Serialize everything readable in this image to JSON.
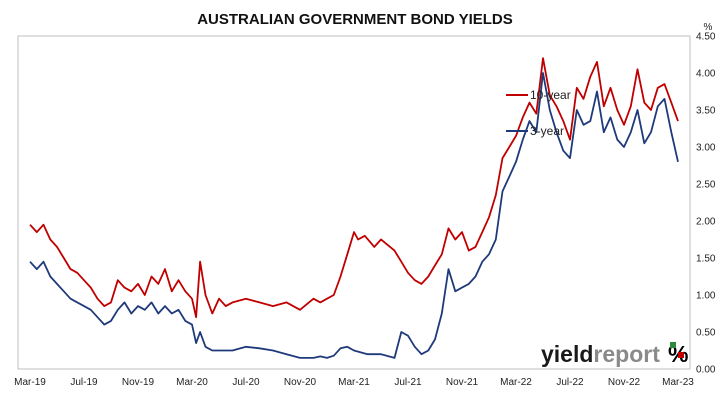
{
  "chart_data": {
    "type": "line",
    "title": "AUSTRALIAN GOVERNMENT BOND YIELDS",
    "xlabel": "",
    "ylabel": "",
    "y_unit": "%",
    "ylim": [
      0,
      4.5
    ],
    "y_ticks": [
      "0.00",
      "0.50",
      "1.00",
      "1.50",
      "2.00",
      "2.50",
      "3.00",
      "3.50",
      "4.00",
      "4.50"
    ],
    "x_tick_labels": [
      "Mar-19",
      "Jul-19",
      "Nov-19",
      "Mar-20",
      "Jul-20",
      "Nov-20",
      "Mar-21",
      "Jul-21",
      "Nov-21",
      "Mar-22",
      "Jul-22",
      "Nov-22",
      "Mar-23"
    ],
    "x_months_range": [
      0,
      48
    ],
    "grid": false,
    "legend_position": "top-right",
    "series": [
      {
        "name": "10-year",
        "color": "#c00000",
        "x": [
          0,
          0.5,
          1,
          1.5,
          2,
          2.5,
          3,
          3.5,
          4,
          4.5,
          5,
          5.5,
          6,
          6.5,
          7,
          7.5,
          8,
          8.5,
          9,
          9.5,
          10,
          10.5,
          11,
          11.5,
          12,
          12.3,
          12.6,
          13,
          13.5,
          14,
          14.5,
          15,
          16,
          17,
          18,
          19,
          20,
          21,
          21.5,
          22,
          22.5,
          23,
          23.5,
          24,
          24.3,
          24.8,
          25.5,
          26,
          27,
          27.5,
          28,
          28.5,
          29,
          29.5,
          30,
          30.5,
          31,
          31.5,
          32,
          32.5,
          33,
          33.5,
          34,
          34.5,
          35,
          35.5,
          36,
          36.5,
          37,
          37.5,
          38,
          38.5,
          39,
          39.5,
          40,
          40.5,
          41,
          41.5,
          42,
          42.5,
          43,
          43.5,
          44,
          44.5,
          45,
          45.5,
          46,
          46.5,
          47,
          47.5,
          48
        ],
        "values": [
          1.95,
          1.85,
          1.95,
          1.75,
          1.65,
          1.5,
          1.35,
          1.3,
          1.2,
          1.1,
          0.95,
          0.85,
          0.9,
          1.2,
          1.1,
          1.05,
          1.15,
          1.0,
          1.25,
          1.15,
          1.35,
          1.05,
          1.2,
          1.05,
          0.95,
          0.7,
          1.45,
          1.0,
          0.75,
          0.95,
          0.85,
          0.9,
          0.95,
          0.9,
          0.85,
          0.9,
          0.8,
          0.95,
          0.9,
          0.95,
          1.0,
          1.25,
          1.55,
          1.85,
          1.75,
          1.8,
          1.65,
          1.75,
          1.6,
          1.45,
          1.3,
          1.2,
          1.15,
          1.25,
          1.4,
          1.55,
          1.9,
          1.75,
          1.85,
          1.6,
          1.65,
          1.85,
          2.05,
          2.35,
          2.85,
          3.0,
          3.15,
          3.4,
          3.6,
          3.45,
          4.2,
          3.7,
          3.55,
          3.35,
          3.1,
          3.8,
          3.65,
          3.95,
          4.15,
          3.55,
          3.8,
          3.5,
          3.3,
          3.55,
          4.05,
          3.6,
          3.5,
          3.8,
          3.85,
          3.6,
          3.35
        ]
      },
      {
        "name": "3-year",
        "color": "#1f3a7a",
        "x": [
          0,
          0.5,
          1,
          1.5,
          2,
          2.5,
          3,
          3.5,
          4,
          4.5,
          5,
          5.5,
          6,
          6.5,
          7,
          7.5,
          8,
          8.5,
          9,
          9.5,
          10,
          10.5,
          11,
          11.5,
          12,
          12.3,
          12.6,
          13,
          13.5,
          14,
          15,
          16,
          17,
          18,
          19,
          20,
          21,
          21.5,
          22,
          22.5,
          23,
          23.5,
          24,
          25,
          26,
          27,
          27.5,
          28,
          28.5,
          29,
          29.5,
          30,
          30.5,
          31,
          31.5,
          32,
          32.5,
          33,
          33.5,
          34,
          34.5,
          35,
          35.5,
          36,
          36.5,
          37,
          37.5,
          38,
          38.5,
          39,
          39.5,
          40,
          40.5,
          41,
          41.5,
          42,
          42.5,
          43,
          43.5,
          44,
          44.5,
          45,
          45.5,
          46,
          46.5,
          47,
          47.5,
          48
        ],
        "values": [
          1.45,
          1.35,
          1.45,
          1.25,
          1.15,
          1.05,
          0.95,
          0.9,
          0.85,
          0.8,
          0.7,
          0.6,
          0.65,
          0.8,
          0.9,
          0.75,
          0.85,
          0.8,
          0.9,
          0.75,
          0.85,
          0.75,
          0.8,
          0.65,
          0.6,
          0.35,
          0.5,
          0.3,
          0.25,
          0.25,
          0.25,
          0.3,
          0.28,
          0.25,
          0.2,
          0.15,
          0.15,
          0.17,
          0.15,
          0.18,
          0.28,
          0.3,
          0.25,
          0.2,
          0.2,
          0.15,
          0.5,
          0.45,
          0.3,
          0.2,
          0.25,
          0.4,
          0.75,
          1.35,
          1.05,
          1.1,
          1.15,
          1.25,
          1.45,
          1.55,
          1.75,
          2.4,
          2.6,
          2.8,
          3.1,
          3.35,
          3.2,
          4.0,
          3.5,
          3.2,
          2.95,
          2.85,
          3.5,
          3.3,
          3.35,
          3.75,
          3.2,
          3.4,
          3.1,
          3.0,
          3.2,
          3.5,
          3.05,
          3.2,
          3.55,
          3.65,
          3.2,
          2.8
        ]
      }
    ]
  },
  "logo": {
    "text_main": "yieldreport",
    "text_mark": "%"
  }
}
